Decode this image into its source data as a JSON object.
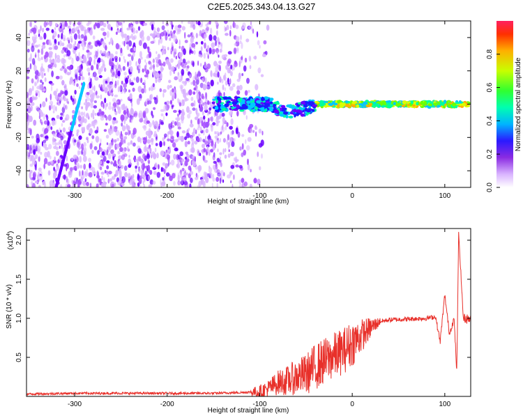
{
  "title": "C2E5.2025.343.04.13.G27",
  "colors": {
    "snr_line": "#e8302a",
    "background": "#ffffff",
    "colormap": [
      "#ffffff",
      "#d9b3ff",
      "#a64dff",
      "#6a00ff",
      "#1a1aff",
      "#00c8ff",
      "#00ff9c",
      "#6bff00",
      "#d8ff00",
      "#ffb000",
      "#ff2a00"
    ]
  },
  "chart_data": [
    {
      "type": "heatmap",
      "xlabel": "Height of straight line (km)",
      "ylabel": "Frequency (Hz)",
      "xlim": [
        -352,
        128
      ],
      "ylim": [
        -50,
        50
      ],
      "xticks": [
        -300,
        -200,
        -100,
        0,
        100
      ],
      "yticks": [
        -40,
        -20,
        0,
        20,
        40
      ],
      "colorbar": {
        "label": "Normalized spectral amplitude",
        "range": [
          0.0,
          1.0
        ],
        "ticks": [
          "0.0",
          "0.2",
          "0.4",
          "0.6",
          "0.8"
        ]
      },
      "features": {
        "noise_region_x": [
          -352,
          -110
        ],
        "carrier_band_x": [
          -150,
          128
        ],
        "carrier_frequency": 0,
        "diagonal_track": {
          "x": [
            -320,
            -290
          ],
          "y": [
            -50,
            12
          ]
        }
      }
    },
    {
      "type": "line",
      "xlabel": "Height of straight line (km)",
      "ylabel": "SNR (10 * v/v)",
      "yscale_label": "(x10",
      "yscale_exponent": "4",
      "xlim": [
        -352,
        128
      ],
      "ylim": [
        0,
        2.15
      ],
      "xticks": [
        -300,
        -200,
        -100,
        0,
        100
      ],
      "yticks": [
        "0.5",
        "1.0",
        "1.5",
        "2.0"
      ],
      "x": [
        -352,
        -300,
        -250,
        -200,
        -150,
        -120,
        -100,
        -90,
        -80,
        -70,
        -60,
        -50,
        -40,
        -30,
        -20,
        -10,
        0,
        10,
        20,
        30,
        40,
        60,
        80,
        90,
        95,
        100,
        105,
        110,
        113,
        115,
        120,
        128
      ],
      "values": [
        0.03,
        0.04,
        0.04,
        0.04,
        0.04,
        0.05,
        0.06,
        0.1,
        0.18,
        0.2,
        0.25,
        0.28,
        0.38,
        0.45,
        0.52,
        0.58,
        0.68,
        0.78,
        0.88,
        0.96,
        0.98,
        0.99,
        1.0,
        1.02,
        0.7,
        1.3,
        0.8,
        1.0,
        0.3,
        2.1,
        1.0,
        0.99
      ]
    }
  ]
}
